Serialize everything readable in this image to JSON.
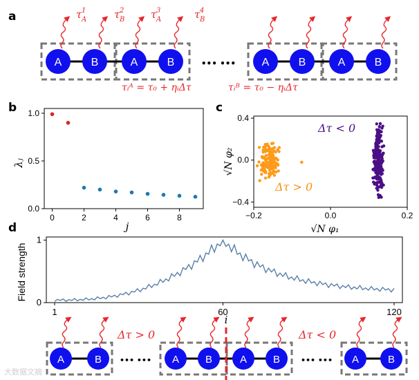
{
  "panel_labels": {
    "a": "a",
    "b": "b",
    "c": "c",
    "d": "d"
  },
  "panel_a": {
    "site_A": "A",
    "site_B": "B",
    "ellipsis": "••• •••",
    "tau_labels": [
      {
        "base": "τ",
        "sup": "1",
        "sub": "A"
      },
      {
        "base": "τ",
        "sup": "2",
        "sub": "B"
      },
      {
        "base": "τ",
        "sup": "3",
        "sub": "A"
      },
      {
        "base": "τ",
        "sup": "4",
        "sub": "B"
      }
    ],
    "eq_A": "τᵢᴬ = τ₀ + ηᵢΔτ",
    "eq_B": "τᵢᴮ = τ₀ − ηᵢΔτ",
    "red": "#e8262b",
    "blue": "#1010ee"
  },
  "chart_data": [
    {
      "type": "scatter",
      "panel": "b",
      "xlabel": "j",
      "ylabel": "λⱼ",
      "xlim": [
        -0.5,
        9.5
      ],
      "ylim": [
        0,
        1.05
      ],
      "xticks": [
        "0",
        "2",
        "4",
        "6",
        "8"
      ],
      "yticks": [
        "0.0",
        "0.5",
        "1.0"
      ],
      "series": [
        {
          "name": "red",
          "color": "#d62728",
          "x": [
            0,
            1
          ],
          "y": [
            0.99,
            0.9
          ]
        },
        {
          "name": "blue",
          "color": "#1f77b4",
          "x": [
            2,
            3,
            4,
            5,
            6,
            7,
            8,
            9
          ],
          "y": [
            0.22,
            0.2,
            0.18,
            0.17,
            0.155,
            0.145,
            0.135,
            0.125
          ]
        }
      ]
    },
    {
      "type": "scatter",
      "panel": "c",
      "xlabel": "√N φ₁",
      "ylabel": "√N φ₂",
      "xlim": [
        -0.2,
        0.2
      ],
      "ylim": [
        -0.45,
        0.42
      ],
      "xticks": [
        "−0.2",
        "0.0",
        "0.2"
      ],
      "yticks": [
        "−0.4",
        "0.0",
        "0.4"
      ],
      "annotations": [
        {
          "text": "Δτ < 0",
          "color": "#4b0f85"
        },
        {
          "text": "Δτ > 0",
          "color": "#f5900f"
        }
      ],
      "series": [
        {
          "name": "orange cluster",
          "color": "#ff9a1a",
          "x_center": -0.16,
          "x_spread": 0.018,
          "y_range": [
            -0.2,
            0.17
          ],
          "count": 150
        },
        {
          "name": "purple cluster",
          "color": "#4b0f85",
          "x_center": 0.125,
          "x_spread": 0.009,
          "y_range": [
            -0.4,
            0.38
          ],
          "count": 200
        }
      ]
    },
    {
      "type": "line",
      "panel": "d",
      "ylabel": "Field strength",
      "xlim": [
        1,
        120
      ],
      "ylim": [
        0,
        1.05
      ],
      "xticks": [
        "1",
        "60",
        "120"
      ],
      "yticks": [
        "0",
        "1"
      ],
      "color": "#5b7fa8",
      "peak_index": 60,
      "n_points": 120
    }
  ],
  "panel_d": {
    "i_label": "i",
    "left_label": "Δτ > 0",
    "right_label": "Δτ < 0",
    "ellipsis": "••• •••"
  },
  "watermark": "大数据文摘"
}
